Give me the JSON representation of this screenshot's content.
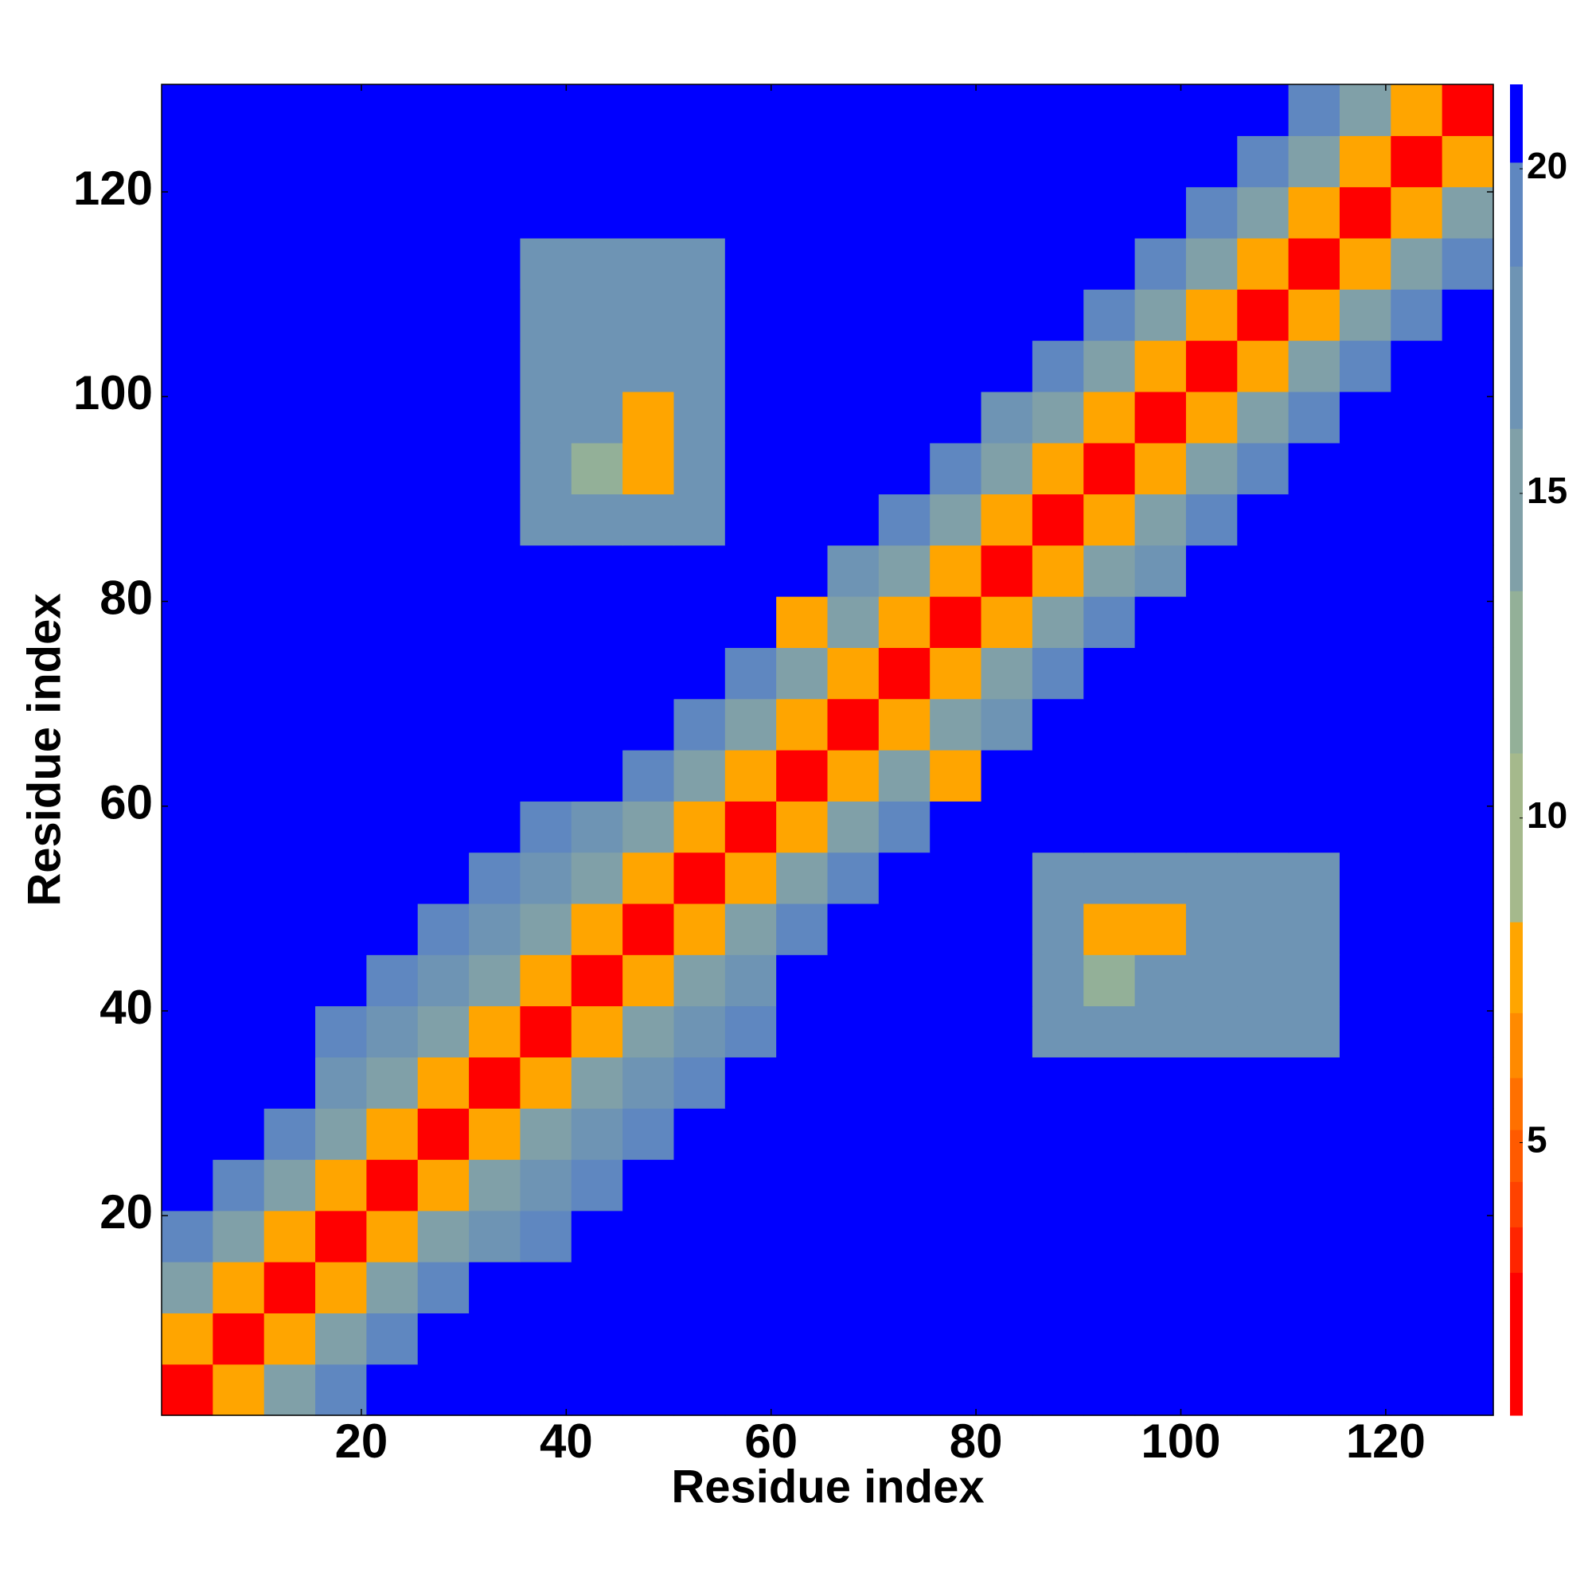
{
  "chart_data": {
    "type": "heatmap",
    "xlabel": "Residue index",
    "ylabel": "Residue index",
    "xlim": [
      0.5,
      130.5
    ],
    "ylim": [
      0.5,
      130.5
    ],
    "xticks": [
      20,
      40,
      60,
      80,
      100,
      120
    ],
    "yticks": [
      20,
      40,
      60,
      80,
      100,
      120
    ],
    "xbins": [
      0.5,
      5.5,
      10.5,
      15.5,
      20.5,
      25.5,
      30.5,
      35.5,
      40.5,
      45.5,
      50.5,
      55.5,
      60.5,
      65.5,
      70.5,
      75.5,
      80.5,
      85.5,
      90.5,
      95.5,
      100.5,
      105.5,
      110.5,
      115.5,
      120.5,
      125.5,
      130.5
    ],
    "ybins": [
      0.5,
      5.5,
      10.5,
      15.5,
      20.5,
      25.5,
      30.5,
      35.5,
      40.5,
      45.5,
      50.5,
      55.5,
      60.5,
      65.5,
      70.5,
      75.5,
      80.5,
      85.5,
      90.5,
      95.5,
      100.5,
      105.5,
      110.5,
      115.5,
      120.5,
      125.5,
      130.5
    ],
    "z": [
      [
        2.5,
        8,
        14,
        19,
        21,
        21,
        21,
        21,
        21,
        21,
        21,
        21,
        21,
        21,
        21,
        21,
        21,
        21,
        21,
        21,
        21,
        21,
        21,
        21,
        21,
        21
      ],
      [
        8,
        2.5,
        8,
        14,
        19,
        21,
        21,
        21,
        21,
        21,
        21,
        21,
        21,
        21,
        21,
        21,
        21,
        21,
        21,
        21,
        21,
        21,
        21,
        21,
        21,
        21
      ],
      [
        14,
        8,
        2.5,
        8,
        14,
        19,
        21,
        21,
        21,
        21,
        21,
        21,
        21,
        21,
        21,
        21,
        21,
        21,
        21,
        21,
        21,
        21,
        21,
        21,
        21,
        21
      ],
      [
        19,
        14,
        8,
        2.5,
        8,
        14,
        16,
        19,
        21,
        21,
        21,
        21,
        21,
        21,
        21,
        21,
        21,
        21,
        21,
        21,
        21,
        21,
        21,
        21,
        21,
        21
      ],
      [
        21,
        19,
        14,
        8,
        2.5,
        8,
        14,
        16,
        19,
        21,
        21,
        21,
        21,
        21,
        21,
        21,
        21,
        21,
        21,
        21,
        21,
        21,
        21,
        21,
        21,
        21
      ],
      [
        21,
        21,
        19,
        14,
        8,
        2.5,
        8,
        14,
        16,
        19,
        21,
        21,
        21,
        21,
        21,
        21,
        21,
        21,
        21,
        21,
        21,
        21,
        21,
        21,
        21,
        21
      ],
      [
        21,
        21,
        21,
        16,
        14,
        8,
        2.5,
        8,
        14,
        16,
        19,
        21,
        21,
        21,
        21,
        21,
        21,
        21,
        21,
        21,
        21,
        21,
        21,
        21,
        21,
        21
      ],
      [
        21,
        21,
        21,
        19,
        16,
        14,
        8,
        2.5,
        8,
        14,
        16,
        19,
        21,
        21,
        21,
        21,
        21,
        17,
        17,
        17,
        17,
        17,
        17,
        21,
        21,
        21
      ],
      [
        21,
        21,
        21,
        21,
        19,
        16,
        14,
        8,
        2.5,
        8,
        14,
        16,
        21,
        21,
        21,
        21,
        21,
        17,
        12,
        17,
        17,
        17,
        17,
        21,
        21,
        21
      ],
      [
        21,
        21,
        21,
        21,
        21,
        19,
        16,
        14,
        8,
        2.5,
        8,
        14,
        19,
        21,
        21,
        21,
        21,
        17,
        8,
        8,
        17,
        17,
        17,
        21,
        21,
        21
      ],
      [
        21,
        21,
        21,
        21,
        21,
        21,
        19,
        16,
        14,
        8,
        2.5,
        8,
        14,
        19,
        21,
        21,
        21,
        17,
        17,
        17,
        17,
        17,
        17,
        21,
        21,
        21
      ],
      [
        21,
        21,
        21,
        21,
        21,
        21,
        21,
        19,
        16,
        14,
        8,
        2.5,
        8,
        14,
        19,
        21,
        21,
        21,
        21,
        21,
        21,
        21,
        21,
        21,
        21,
        21
      ],
      [
        21,
        21,
        21,
        21,
        21,
        21,
        21,
        21,
        21,
        19,
        14,
        8,
        2.5,
        8,
        14,
        7,
        21,
        21,
        21,
        21,
        21,
        21,
        21,
        21,
        21,
        21
      ],
      [
        21,
        21,
        21,
        21,
        21,
        21,
        21,
        21,
        21,
        21,
        19,
        14,
        8,
        2.5,
        8,
        14,
        17,
        21,
        21,
        21,
        21,
        21,
        21,
        21,
        21,
        21
      ],
      [
        21,
        21,
        21,
        21,
        21,
        21,
        21,
        21,
        21,
        21,
        21,
        19,
        14,
        8,
        2.5,
        8,
        14,
        19,
        21,
        21,
        21,
        21,
        21,
        21,
        21,
        21
      ],
      [
        21,
        21,
        21,
        21,
        21,
        21,
        21,
        21,
        21,
        21,
        21,
        21,
        7,
        14,
        8,
        2.5,
        8,
        14,
        19,
        21,
        21,
        21,
        21,
        21,
        21,
        21
      ],
      [
        21,
        21,
        21,
        21,
        21,
        21,
        21,
        21,
        21,
        21,
        21,
        21,
        21,
        17,
        14,
        8,
        2.5,
        8,
        14,
        17,
        21,
        21,
        21,
        21,
        21,
        21
      ],
      [
        21,
        21,
        21,
        21,
        21,
        21,
        21,
        17,
        17,
        17,
        17,
        21,
        21,
        21,
        19,
        14,
        8,
        2.5,
        8,
        14,
        19,
        21,
        21,
        21,
        21,
        21
      ],
      [
        21,
        21,
        21,
        21,
        21,
        21,
        21,
        17,
        12,
        8,
        17,
        21,
        21,
        21,
        21,
        19,
        14,
        8,
        2.5,
        8,
        14,
        19,
        21,
        21,
        21,
        21
      ],
      [
        21,
        21,
        21,
        21,
        21,
        21,
        21,
        17,
        17,
        8,
        17,
        21,
        21,
        21,
        21,
        21,
        17,
        14,
        8,
        2.5,
        8,
        14,
        19,
        21,
        21,
        21
      ],
      [
        21,
        21,
        21,
        21,
        21,
        21,
        21,
        17,
        17,
        17,
        17,
        21,
        21,
        21,
        21,
        21,
        21,
        19,
        14,
        8,
        2.5,
        8,
        14,
        19,
        21,
        21
      ],
      [
        21,
        21,
        21,
        21,
        21,
        21,
        21,
        17,
        17,
        17,
        17,
        21,
        21,
        21,
        21,
        21,
        21,
        21,
        19,
        14,
        8,
        2.5,
        8,
        14,
        19,
        21
      ],
      [
        21,
        21,
        21,
        21,
        21,
        21,
        21,
        17,
        17,
        17,
        17,
        21,
        21,
        21,
        21,
        21,
        21,
        21,
        21,
        19,
        14,
        8,
        2.5,
        8,
        14,
        19
      ],
      [
        21,
        21,
        21,
        21,
        21,
        21,
        21,
        21,
        21,
        21,
        21,
        21,
        21,
        21,
        21,
        21,
        21,
        21,
        21,
        21,
        19,
        14,
        8,
        2.5,
        8,
        14
      ],
      [
        21,
        21,
        21,
        21,
        21,
        21,
        21,
        21,
        21,
        21,
        21,
        21,
        21,
        21,
        21,
        21,
        21,
        21,
        21,
        21,
        21,
        19,
        14,
        8,
        2.5,
        8
      ],
      [
        21,
        21,
        21,
        21,
        21,
        21,
        21,
        21,
        21,
        21,
        21,
        21,
        21,
        21,
        21,
        21,
        21,
        21,
        21,
        21,
        21,
        21,
        19,
        14,
        8,
        2.5
      ]
    ],
    "colorbar": {
      "lim": [
        0.8,
        21.3
      ],
      "ticks": [
        5,
        10,
        15,
        20
      ],
      "levels": [
        0.8,
        3,
        3.7,
        4.4,
        5.2,
        6,
        7,
        8.4,
        11,
        13.5,
        16,
        18.5,
        20.1,
        21.3
      ],
      "colors": [
        "#ff0000",
        "#ff2400",
        "#ff4200",
        "#ff5a00",
        "#ff7000",
        "#ff8a00",
        "#ffa500",
        "#a5b98c",
        "#93b098",
        "#80a0a8",
        "#6e94b4",
        "#5f87c0",
        "#0000ff"
      ]
    }
  }
}
